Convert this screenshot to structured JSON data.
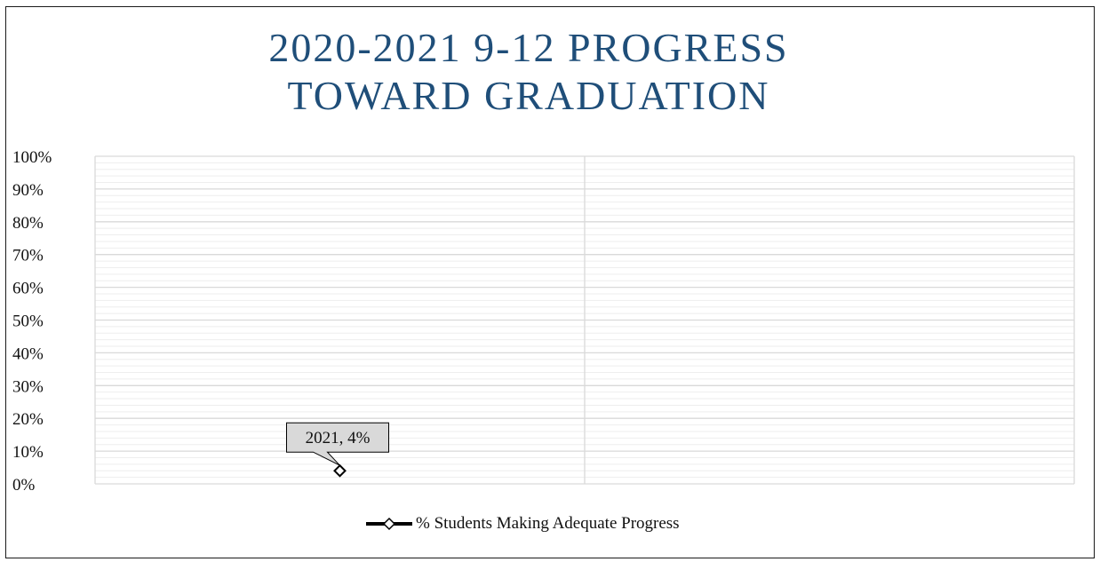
{
  "chart_data": {
    "type": "line",
    "title": "2020-2021 9-12 PROGRESS TOWARD GRADUATION",
    "title_lines": [
      "2020-2021 9-12 PROGRESS",
      "TOWARD GRADUATION"
    ],
    "categories": [
      "2021",
      ""
    ],
    "series": [
      {
        "name": "% Students Making Adequate Progress",
        "values": [
          4,
          null
        ],
        "color": "#000000",
        "marker": "diamond"
      }
    ],
    "data_labels": [
      {
        "series": 0,
        "index": 0,
        "text": "2021, 4%"
      }
    ],
    "ylim": [
      0,
      100
    ],
    "yticks": [
      0,
      10,
      20,
      30,
      40,
      50,
      60,
      70,
      80,
      90,
      100
    ],
    "ytick_labels": [
      "0%",
      "10%",
      "20%",
      "30%",
      "40%",
      "50%",
      "60%",
      "70%",
      "80%",
      "90%",
      "100%"
    ],
    "minor_grid_step": 2,
    "grid": true,
    "legend_position": "bottom",
    "colors": {
      "title": "#1f4e79",
      "grid_major": "#d9d9d9",
      "grid_minor": "#eeeeee",
      "label_fill": "#d9d9d9"
    }
  }
}
